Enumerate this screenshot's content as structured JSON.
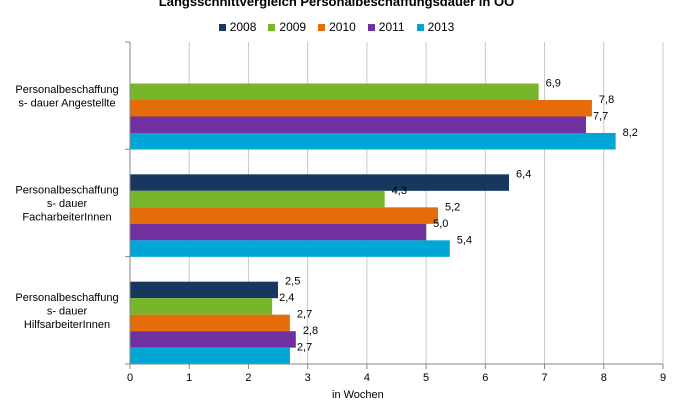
{
  "chart_data": {
    "type": "bar",
    "orientation": "horizontal",
    "title": "Längsschnittvergleich Personalbeschaffungsdauer in OÖ",
    "xlabel": "in Wochen",
    "ylabel": "",
    "xlim": [
      0,
      9
    ],
    "x_ticks": [
      "0",
      "1",
      "2",
      "3",
      "4",
      "5",
      "6",
      "7",
      "8",
      "9"
    ],
    "grid": "vertical",
    "legend_position": "top",
    "categories": [
      [
        "Personalbeschaffung",
        "s- dauer Angestellte"
      ],
      [
        "Personalbeschaffung",
        "s- dauer",
        "FacharbeiterInnen"
      ],
      [
        "Personalbeschaffung",
        "s- dauer",
        "HilfsarbeiterInnen"
      ]
    ],
    "series": [
      {
        "name": "2008",
        "color": "#17375e",
        "values": [
          null,
          6.4,
          2.5
        ],
        "labels": [
          "",
          "6,4",
          "2,5"
        ]
      },
      {
        "name": "2009",
        "color": "#77b52b",
        "values": [
          6.9,
          4.3,
          2.4
        ],
        "labels": [
          "6,9",
          "4,3",
          "2,4"
        ]
      },
      {
        "name": "2010",
        "color": "#e46c0a",
        "values": [
          7.8,
          5.2,
          2.7
        ],
        "labels": [
          "7,8",
          "5,2",
          "2,7"
        ]
      },
      {
        "name": "2011",
        "color": "#7030a0",
        "values": [
          7.7,
          5.0,
          2.8
        ],
        "labels": [
          "7,7",
          "5,0",
          "2,8"
        ]
      },
      {
        "name": "2013",
        "color": "#00a6d6",
        "values": [
          8.2,
          5.4,
          2.7
        ],
        "labels": [
          "8,2",
          "5,4",
          "2,7"
        ]
      }
    ]
  }
}
